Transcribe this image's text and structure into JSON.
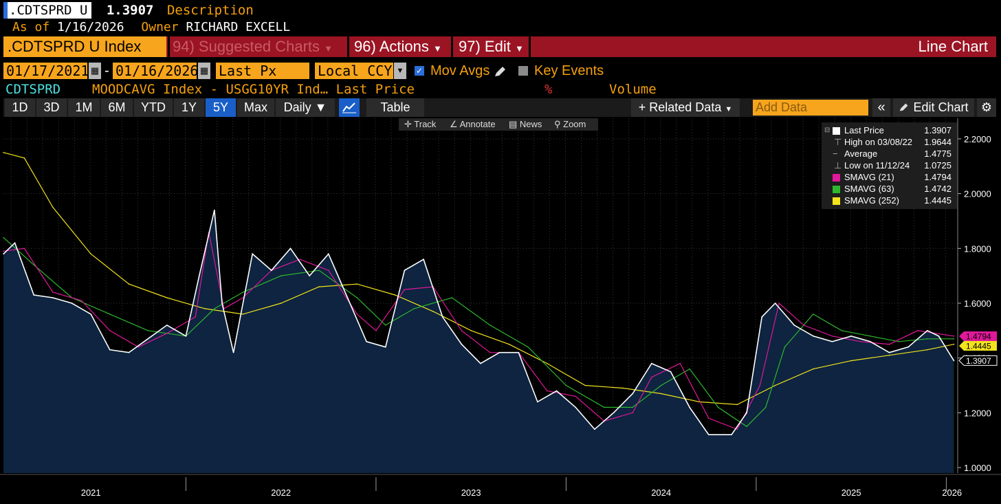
{
  "header": {
    "ticker": ".CDTSPRD U",
    "last_value": "1.3907",
    "description_label": "Description",
    "asof_label": "As of",
    "asof_date": "1/16/2026",
    "owner_label": "Owner",
    "owner_name": "RICHARD EXCELL"
  },
  "menu": {
    "ticker_box": ".CDTSPRD U Index",
    "suggested": "94) Suggested Charts",
    "actions": "96) Actions",
    "edit": "97) Edit",
    "chart_type": "Line Chart"
  },
  "controls": {
    "start_date": "01/17/2021",
    "dash": "-",
    "end_date": "01/16/2026",
    "field": "Last Px",
    "currency": "Local CCY",
    "mov_avgs_label": "Mov Avgs",
    "key_events_label": "Key Events"
  },
  "legend_line": {
    "series": "CDTSPRD",
    "formula": "MOODCAVG Index - USGG10YR Ind… Last Price",
    "percent": "%",
    "volume": "Volume"
  },
  "toolbar": {
    "periods": [
      "1D",
      "3D",
      "1M",
      "6M",
      "YTD",
      "1Y",
      "5Y",
      "Max"
    ],
    "selected_period": "5Y",
    "frequency": "Daily ▼",
    "table": "Table",
    "related_data": "+ Related Data",
    "add_data_placeholder": "Add Data",
    "edit_chart": "Edit Chart"
  },
  "mini_toolbar": {
    "track": "Track",
    "annotate": "Annotate",
    "news": "News",
    "zoom": "Zoom"
  },
  "colors": {
    "price": "#ffffff",
    "sma21": "#e0189a",
    "sma63": "#2db82d",
    "sma252": "#f2e31c",
    "area_fill": "#0e2440",
    "menubar": "#9b1423",
    "orange": "#f7a51c"
  },
  "chart_data": {
    "type": "line",
    "title": "CDTSPRD",
    "xlabel": "",
    "ylabel": "",
    "ylim": [
      0.98,
      2.25
    ],
    "x_range": [
      "2021-01-17",
      "2026-01-16"
    ],
    "x_ticks": [
      "2021",
      "2022",
      "2023",
      "2024",
      "2025",
      "2026"
    ],
    "y_ticks": [
      "1.0000",
      "1.2000",
      "1.4000",
      "1.6000",
      "1.8000",
      "2.0000",
      "2.2000"
    ],
    "grid": true,
    "legend": {
      "position": "top-right",
      "entries": [
        {
          "label": "Last Price",
          "value": "1.3907",
          "color": "#ffffff"
        },
        {
          "label": "High on 03/08/22",
          "value": "1.9644",
          "color": ""
        },
        {
          "label": "Average",
          "value": "1.4775",
          "color": ""
        },
        {
          "label": "Low on 11/12/24",
          "value": "1.0725",
          "color": ""
        },
        {
          "label": "SMAVG (21)",
          "value": "1.4794",
          "color": "#e0189a"
        },
        {
          "label": "SMAVG (63)",
          "value": "1.4742",
          "color": "#2db82d"
        },
        {
          "label": "SMAVG (252)",
          "value": "1.4445",
          "color": "#f2e31c"
        }
      ]
    },
    "end_labels": [
      {
        "value": 1.4794,
        "text": "1.4794",
        "color": "#e0189a"
      },
      {
        "value": 1.4445,
        "text": "1.4445",
        "color": "#f2e31c"
      },
      {
        "value": 1.3907,
        "text": "1.3907",
        "color": "#ffffff"
      }
    ],
    "series": [
      {
        "name": "Last Price",
        "color": "#ffffff",
        "x": [
          2021.04,
          2021.1,
          2021.2,
          2021.3,
          2021.4,
          2021.5,
          2021.6,
          2021.7,
          2021.8,
          2021.9,
          2022.0,
          2022.07,
          2022.15,
          2022.19,
          2022.25,
          2022.35,
          2022.45,
          2022.55,
          2022.65,
          2022.75,
          2022.85,
          2022.95,
          2023.05,
          2023.15,
          2023.25,
          2023.35,
          2023.45,
          2023.55,
          2023.65,
          2023.75,
          2023.85,
          2023.95,
          2024.05,
          2024.15,
          2024.25,
          2024.35,
          2024.45,
          2024.55,
          2024.65,
          2024.75,
          2024.87,
          2024.95,
          2025.03,
          2025.1,
          2025.2,
          2025.3,
          2025.4,
          2025.5,
          2025.6,
          2025.7,
          2025.8,
          2025.9,
          2025.96,
          2026.04
        ],
        "values": [
          1.78,
          1.82,
          1.63,
          1.62,
          1.6,
          1.56,
          1.43,
          1.42,
          1.47,
          1.52,
          1.48,
          1.7,
          1.94,
          1.6,
          1.42,
          1.78,
          1.72,
          1.8,
          1.7,
          1.78,
          1.62,
          1.46,
          1.44,
          1.72,
          1.76,
          1.55,
          1.45,
          1.38,
          1.42,
          1.42,
          1.24,
          1.28,
          1.22,
          1.14,
          1.2,
          1.27,
          1.38,
          1.35,
          1.22,
          1.12,
          1.12,
          1.2,
          1.55,
          1.6,
          1.52,
          1.48,
          1.46,
          1.48,
          1.46,
          1.42,
          1.44,
          1.5,
          1.48,
          1.39
        ]
      },
      {
        "name": "SMAVG (21)",
        "color": "#e0189a",
        "x": [
          2021.04,
          2021.15,
          2021.3,
          2021.45,
          2021.6,
          2021.75,
          2021.9,
          2022.05,
          2022.12,
          2022.2,
          2022.3,
          2022.45,
          2022.6,
          2022.75,
          2022.9,
          2023.0,
          2023.15,
          2023.3,
          2023.45,
          2023.6,
          2023.75,
          2023.9,
          2024.05,
          2024.2,
          2024.35,
          2024.45,
          2024.6,
          2024.75,
          2024.9,
          2025.02,
          2025.12,
          2025.25,
          2025.4,
          2025.55,
          2025.7,
          2025.85,
          2026.04
        ],
        "values": [
          1.79,
          1.8,
          1.64,
          1.61,
          1.5,
          1.44,
          1.49,
          1.55,
          1.86,
          1.58,
          1.62,
          1.72,
          1.76,
          1.72,
          1.56,
          1.5,
          1.65,
          1.66,
          1.5,
          1.42,
          1.42,
          1.28,
          1.26,
          1.17,
          1.2,
          1.33,
          1.38,
          1.18,
          1.14,
          1.3,
          1.6,
          1.52,
          1.48,
          1.46,
          1.45,
          1.5,
          1.48
        ]
      },
      {
        "name": "SMAVG (63)",
        "color": "#2db82d",
        "x": [
          2021.04,
          2021.2,
          2021.4,
          2021.6,
          2021.8,
          2022.0,
          2022.15,
          2022.3,
          2022.5,
          2022.7,
          2022.9,
          2023.05,
          2023.2,
          2023.4,
          2023.6,
          2023.8,
          2024.0,
          2024.2,
          2024.35,
          2024.5,
          2024.65,
          2024.8,
          2024.95,
          2025.05,
          2025.15,
          2025.3,
          2025.45,
          2025.6,
          2025.75,
          2025.9,
          2026.04
        ],
        "values": [
          1.84,
          1.74,
          1.62,
          1.56,
          1.5,
          1.48,
          1.58,
          1.64,
          1.7,
          1.72,
          1.62,
          1.52,
          1.58,
          1.62,
          1.52,
          1.44,
          1.3,
          1.22,
          1.22,
          1.3,
          1.36,
          1.22,
          1.15,
          1.22,
          1.44,
          1.56,
          1.5,
          1.48,
          1.46,
          1.47,
          1.47
        ]
      },
      {
        "name": "SMAVG (252)",
        "color": "#f2e31c",
        "x": [
          2021.04,
          2021.15,
          2021.3,
          2021.5,
          2021.7,
          2021.9,
          2022.1,
          2022.3,
          2022.5,
          2022.7,
          2022.9,
          2023.1,
          2023.3,
          2023.5,
          2023.7,
          2023.9,
          2024.1,
          2024.3,
          2024.5,
          2024.7,
          2024.9,
          2025.1,
          2025.3,
          2025.5,
          2025.7,
          2025.9,
          2026.04
        ],
        "values": [
          2.15,
          2.13,
          1.95,
          1.78,
          1.67,
          1.62,
          1.58,
          1.56,
          1.6,
          1.66,
          1.67,
          1.63,
          1.57,
          1.5,
          1.45,
          1.38,
          1.3,
          1.29,
          1.27,
          1.24,
          1.23,
          1.3,
          1.36,
          1.39,
          1.41,
          1.43,
          1.45
        ]
      }
    ]
  }
}
